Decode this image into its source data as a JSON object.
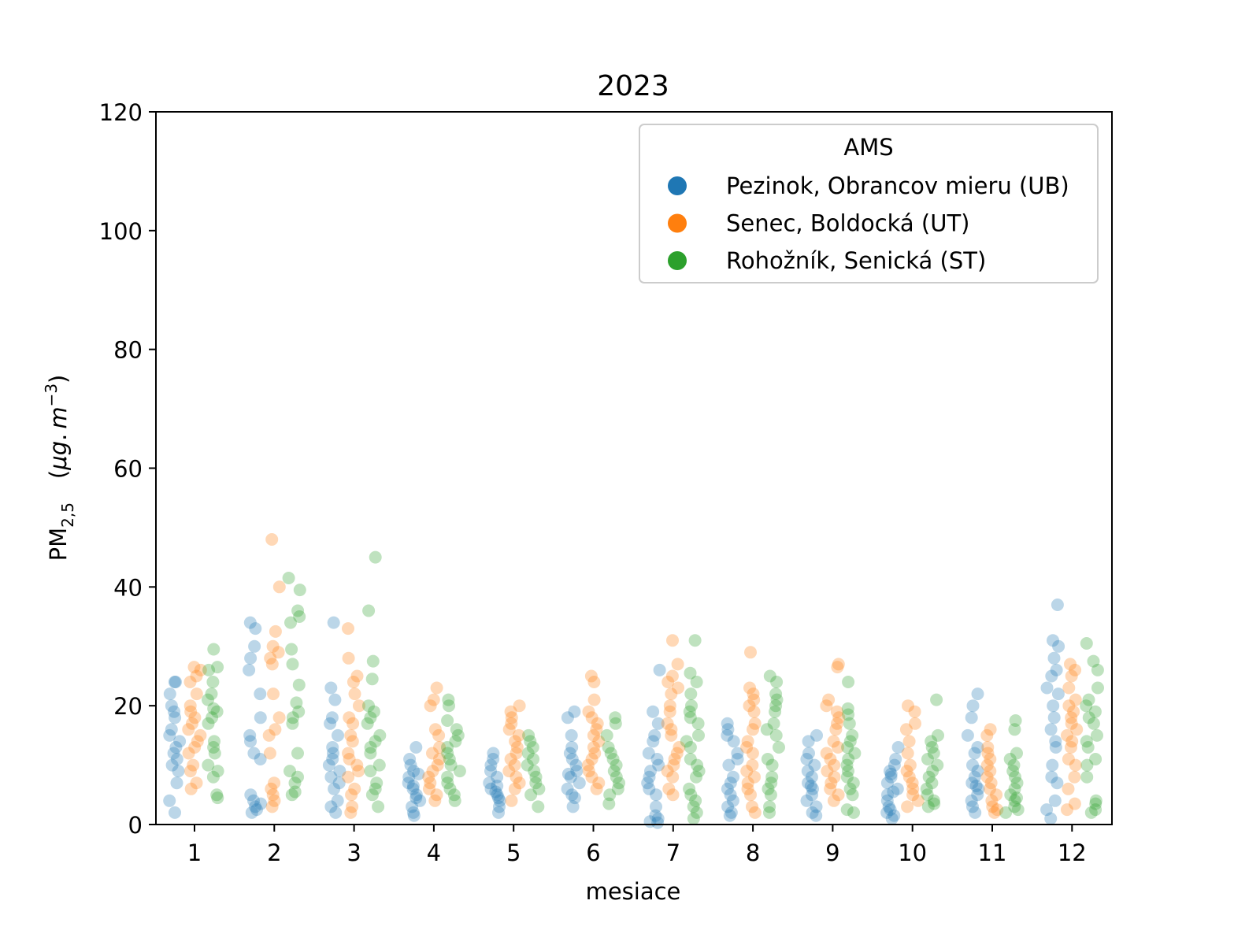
{
  "chart_data": {
    "type": "scatter",
    "title": "2023",
    "xlabel": "mesiace",
    "ylabel": {
      "main": "PM",
      "sub": "2,5",
      "unit_open": "(",
      "unit_mu": "μg",
      "unit_dot": ".",
      "unit_m": "m",
      "unit_exp": "−3",
      "unit_close": ")"
    },
    "ylim": [
      0,
      120
    ],
    "yticks": [
      "0",
      "20",
      "40",
      "60",
      "80",
      "100",
      "120"
    ],
    "categories": [
      "1",
      "2",
      "3",
      "4",
      "5",
      "6",
      "7",
      "8",
      "9",
      "10",
      "11",
      "12"
    ],
    "grid": false,
    "legend": {
      "title": "AMS",
      "placement": "top-right"
    },
    "series": [
      {
        "name": "Pezinok, Obrancov mieru (UB)",
        "color": "#1f77b4",
        "values": [
          [
            24,
            24,
            22,
            20,
            19,
            18,
            15,
            14,
            13,
            12,
            10,
            9,
            7,
            4,
            2,
            16,
            11
          ],
          [
            34,
            33,
            30,
            28,
            26,
            22,
            18,
            15,
            12,
            11,
            5,
            4,
            3,
            2.5,
            2,
            14,
            3.5
          ],
          [
            34,
            23,
            21,
            18,
            17,
            15,
            13,
            11,
            10,
            9,
            8,
            7,
            6,
            3,
            2,
            12,
            4
          ],
          [
            13,
            11,
            10,
            9,
            8,
            7,
            6,
            5,
            4.5,
            4,
            3,
            2,
            1.5,
            6.5,
            8.5
          ],
          [
            12,
            11,
            10,
            9,
            8,
            7,
            6,
            5,
            4.5,
            4,
            3,
            2,
            6.5,
            5.5
          ],
          [
            19,
            18,
            15,
            13,
            12,
            11,
            10,
            9,
            8,
            7,
            6,
            5,
            4.5,
            3,
            8.5
          ],
          [
            26,
            19,
            17,
            15,
            14,
            12,
            11,
            10,
            9,
            7,
            6,
            5,
            3,
            1.5,
            1,
            0.5,
            0.3,
            8
          ],
          [
            17,
            16,
            15,
            14,
            12,
            11,
            10,
            8,
            6,
            5,
            4,
            3,
            2,
            1.5,
            7
          ],
          [
            15,
            14,
            12,
            11,
            10,
            9,
            8,
            7,
            6,
            5,
            4,
            3,
            2,
            1.5,
            6.5
          ],
          [
            13,
            11,
            10,
            9,
            8,
            7,
            6,
            5,
            4,
            3,
            2.5,
            2,
            1.5,
            1,
            8.5,
            5.5
          ],
          [
            22,
            20,
            18,
            15,
            13,
            12,
            10,
            9,
            8,
            7,
            6,
            5,
            4,
            3,
            2,
            6.5
          ],
          [
            37,
            31,
            30,
            28,
            26,
            25,
            23,
            22,
            20,
            18,
            16,
            14,
            13,
            10,
            8,
            7,
            4,
            2.5,
            1
          ]
        ]
      },
      {
        "name": "Senec, Boldocká (UT)",
        "color": "#ff7f0e",
        "values": [
          [
            26.5,
            26,
            25,
            24,
            22,
            20,
            19,
            18,
            17,
            16,
            15,
            13,
            12,
            10,
            9,
            7,
            6,
            14
          ],
          [
            48,
            40,
            32.5,
            30,
            29,
            28,
            27,
            22,
            18,
            16,
            15,
            12,
            7,
            6,
            5,
            4,
            3
          ],
          [
            33,
            28,
            25,
            24,
            22,
            20,
            18,
            17,
            15,
            14,
            12,
            11,
            10,
            9,
            8,
            6,
            5,
            3,
            2
          ],
          [
            23,
            21,
            20,
            16,
            15,
            13,
            12,
            11,
            10,
            9,
            8,
            7,
            6,
            5,
            4
          ],
          [
            20,
            19,
            18,
            17,
            16,
            15,
            14,
            13,
            12,
            11,
            10,
            9,
            8,
            7,
            6,
            4
          ],
          [
            25,
            24,
            21,
            19,
            18,
            17,
            16,
            15,
            13,
            12,
            11,
            10,
            9,
            8,
            7,
            6,
            14
          ],
          [
            31,
            27,
            25,
            24,
            23,
            22,
            20,
            19,
            17,
            16,
            15,
            13,
            12,
            11,
            10,
            9,
            8,
            6,
            5
          ],
          [
            29,
            23,
            22,
            21,
            20,
            19,
            17,
            16,
            14,
            13,
            12,
            10,
            9,
            8,
            7,
            6,
            5,
            3,
            2
          ],
          [
            27,
            26.5,
            21,
            20,
            19,
            18,
            17,
            16,
            14,
            13,
            12,
            11,
            10,
            9,
            8,
            7,
            6,
            5,
            4
          ],
          [
            20,
            19,
            17,
            16,
            14,
            12,
            10,
            9,
            8,
            7,
            6,
            5,
            4,
            3
          ],
          [
            16,
            15,
            13,
            12,
            11,
            10,
            9,
            8,
            7,
            6,
            5,
            4,
            3,
            2.5,
            2
          ],
          [
            27,
            26,
            25,
            23,
            21,
            20,
            19,
            18,
            17,
            16,
            15,
            14,
            13,
            11,
            10,
            8,
            6,
            3.5,
            2.5
          ]
        ]
      },
      {
        "name": "Rohožník, Senická (ST)",
        "color": "#2ca02c",
        "values": [
          [
            29.5,
            26.5,
            26,
            24,
            22,
            21,
            19.5,
            19,
            18,
            17,
            14,
            13,
            12,
            10,
            9,
            8,
            5,
            4.5
          ],
          [
            41.5,
            39.5,
            36,
            35,
            34,
            29.5,
            27,
            23.5,
            20.5,
            19,
            18,
            17,
            12,
            9,
            8,
            7,
            5.5,
            5
          ],
          [
            45,
            36,
            27.5,
            24.5,
            20,
            19,
            18,
            17,
            15,
            14,
            13,
            12,
            10,
            9,
            7,
            6,
            5,
            3
          ],
          [
            21,
            20,
            17.5,
            16,
            15,
            14,
            13,
            12,
            11,
            10,
            9,
            8,
            7,
            6,
            5,
            4
          ],
          [
            15,
            14,
            13,
            12,
            11,
            10,
            9,
            8,
            7,
            6,
            5,
            3
          ],
          [
            18,
            17,
            15,
            13,
            12,
            11,
            10,
            9,
            8,
            7,
            6,
            5,
            3.5
          ],
          [
            31,
            25.5,
            24,
            22,
            20,
            19,
            18,
            17,
            15,
            14,
            13,
            11,
            10,
            9,
            8,
            6,
            5,
            4,
            3,
            2,
            1
          ],
          [
            25,
            24,
            22,
            21,
            20,
            19,
            17,
            16,
            15,
            13,
            11,
            10,
            8,
            7,
            6,
            5,
            3,
            2
          ],
          [
            24,
            19.5,
            18.5,
            17,
            15,
            14,
            13,
            12,
            11,
            10,
            9,
            8,
            7,
            6,
            5,
            2.5,
            2
          ],
          [
            21,
            15,
            14,
            13,
            12,
            11,
            10,
            9,
            8,
            7,
            6,
            5,
            4,
            3.5,
            3
          ],
          [
            17.5,
            16,
            12,
            11,
            10,
            9,
            8,
            7,
            6,
            5,
            4.5,
            4,
            3,
            2.5,
            2
          ],
          [
            30.5,
            27.5,
            26,
            23,
            21,
            20,
            19,
            18,
            17,
            15,
            14,
            13,
            11,
            10,
            8,
            4,
            3.5,
            2.5,
            2
          ]
        ]
      }
    ]
  }
}
